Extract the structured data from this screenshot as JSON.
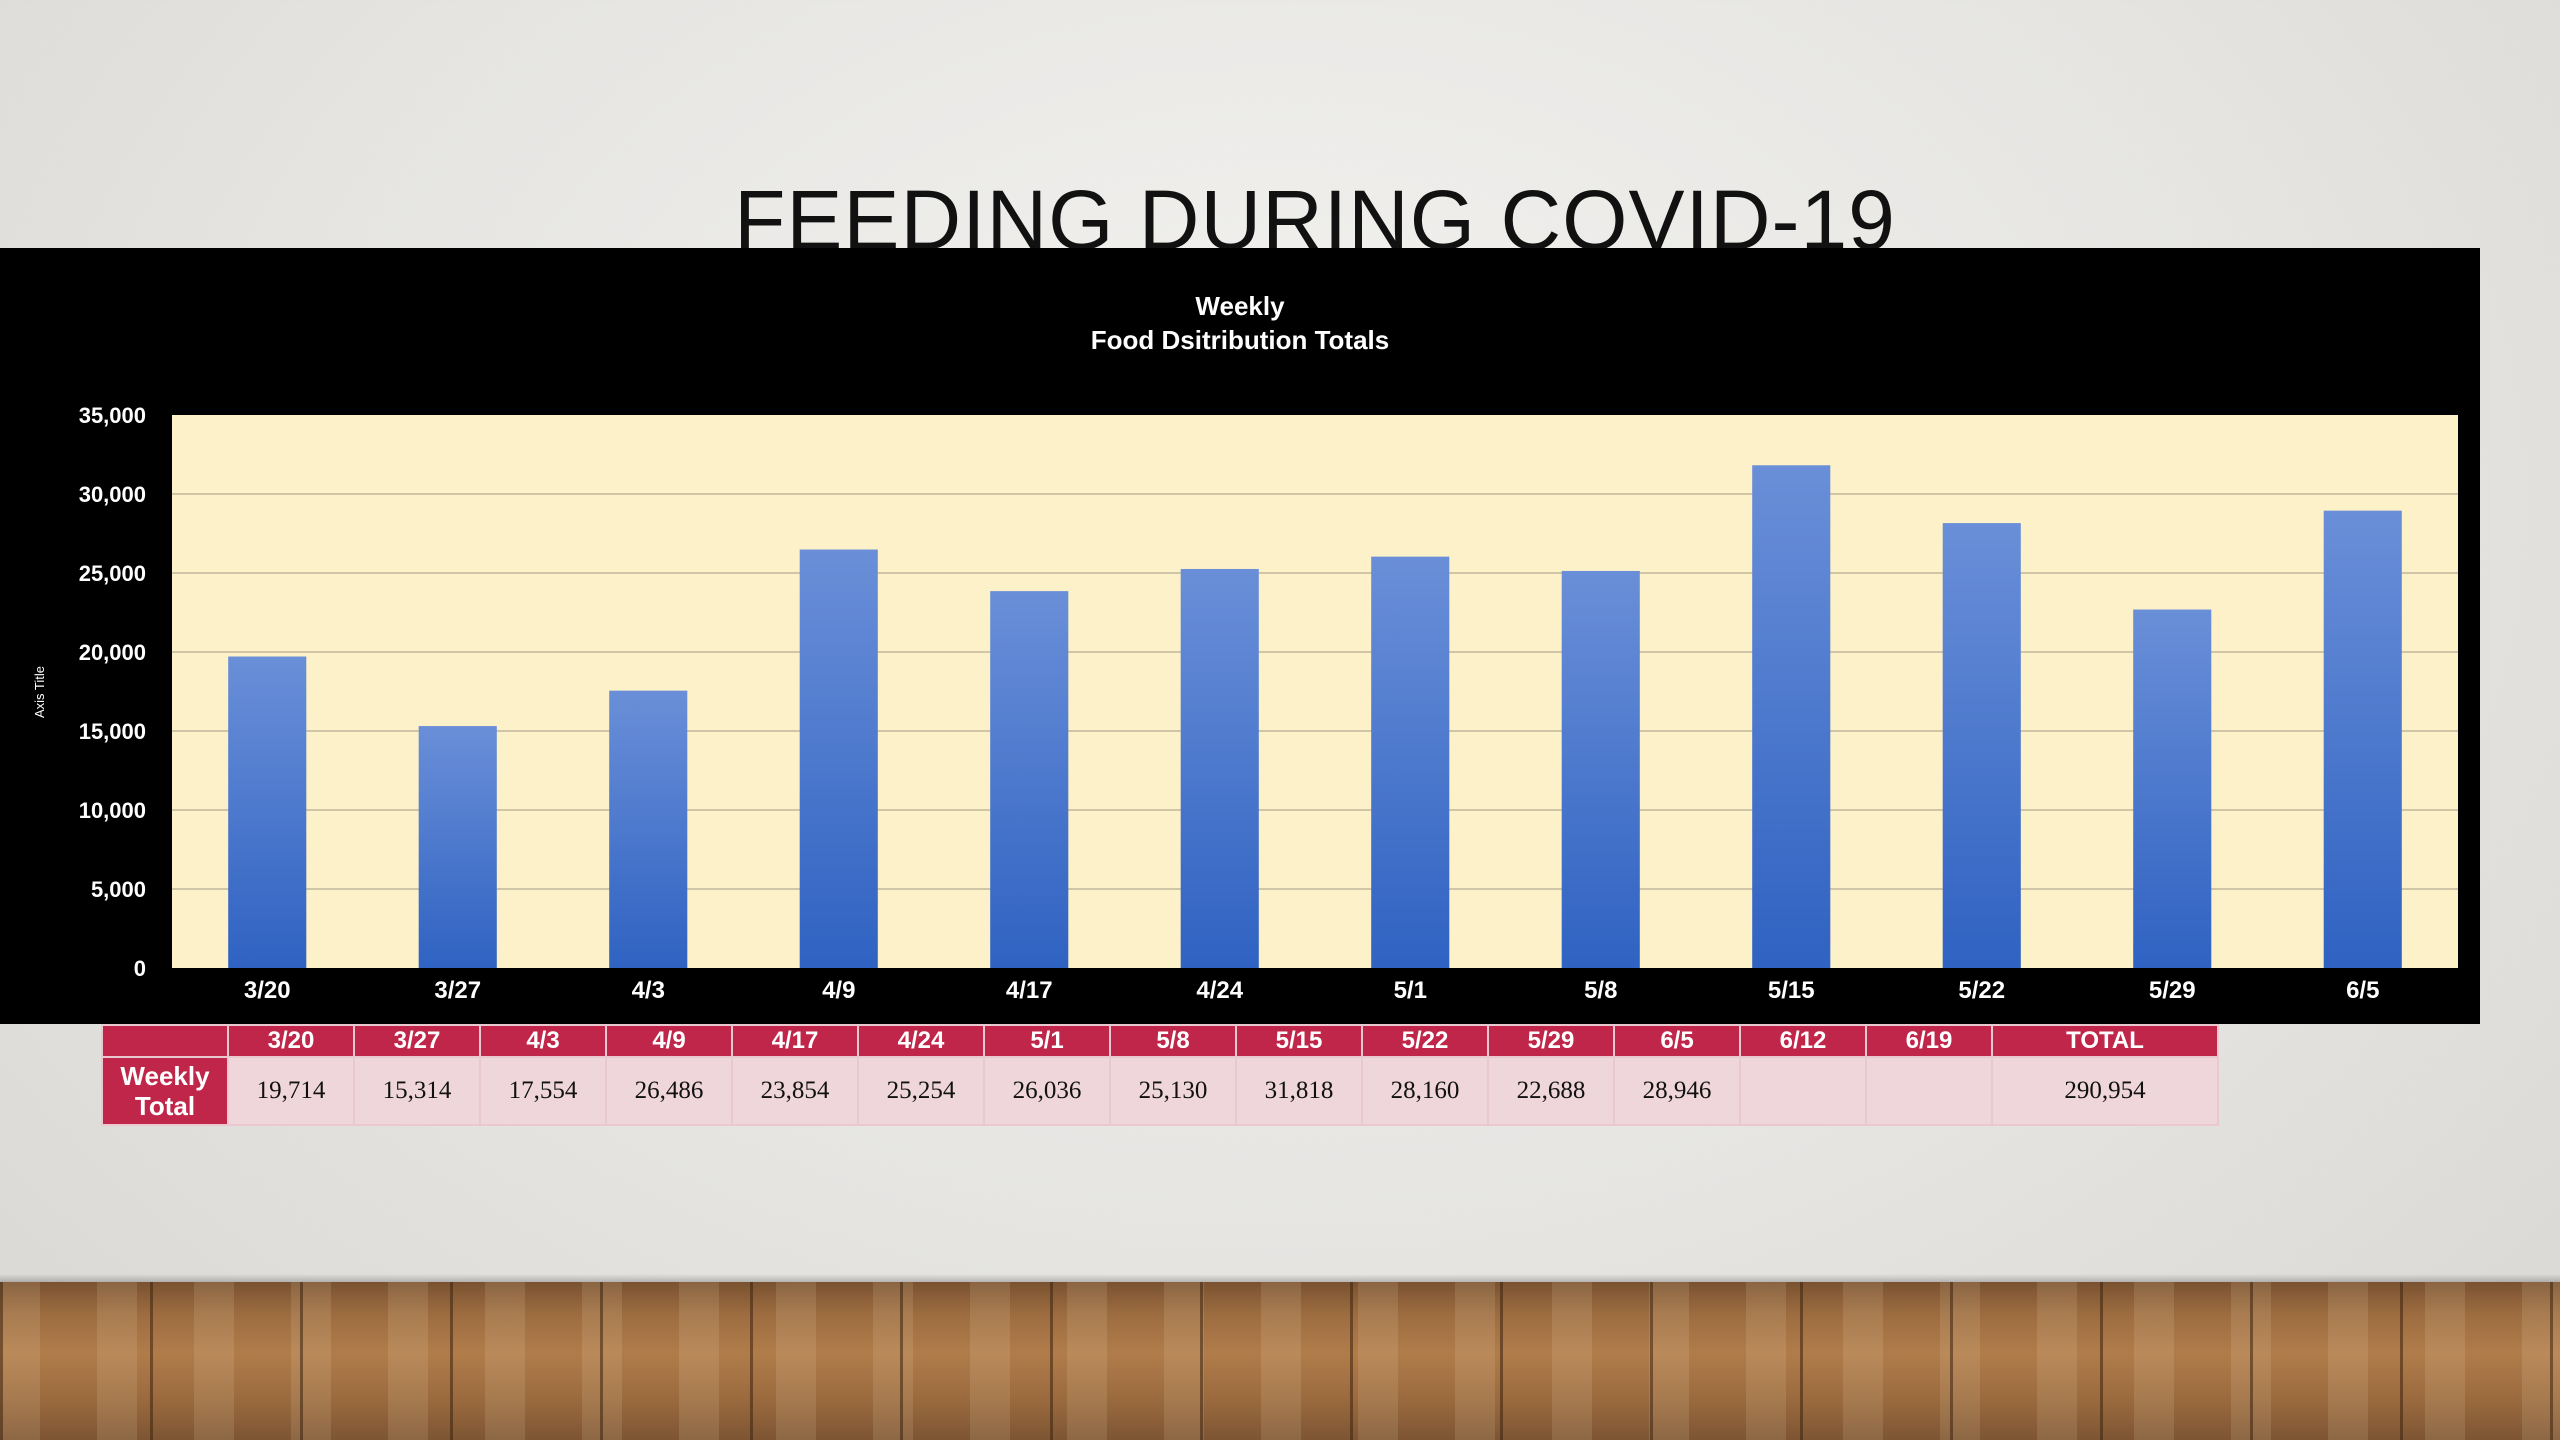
{
  "slide": {
    "title": "FEEDING DURING COVID-19"
  },
  "chart_data": {
    "type": "bar",
    "title": "Weekly",
    "subtitle": "Food Dsitribution Totals",
    "ylabel": "Axis Title",
    "xlabel": "",
    "categories": [
      "3/20",
      "3/27",
      "4/3",
      "4/9",
      "4/17",
      "4/24",
      "5/1",
      "5/8",
      "5/15",
      "5/22",
      "5/29",
      "6/5"
    ],
    "values": [
      19714,
      15314,
      17554,
      26486,
      23854,
      25254,
      26036,
      25130,
      31818,
      28160,
      22688,
      28946
    ],
    "ylim": [
      0,
      35000
    ],
    "yticks": [
      "0",
      "5,000",
      "10,000",
      "15,000",
      "20,000",
      "25,000",
      "30,000",
      "35,000"
    ],
    "grid": true,
    "colors": {
      "bar_top": "#6a8fd8",
      "bar_bottom": "#2f62c2",
      "plot_bg": "#fdf1c9",
      "panel_bg": "#000000",
      "grid": "#cfc6a8"
    }
  },
  "table": {
    "headers": [
      "",
      "3/20",
      "3/27",
      "4/3",
      "4/9",
      "4/17",
      "4/24",
      "5/1",
      "5/8",
      "5/15",
      "5/22",
      "5/29",
      "6/5",
      "6/12",
      "6/19",
      "TOTAL"
    ],
    "row_label_line1": "Weekly",
    "row_label_line2": "Total",
    "values": [
      "19,714",
      "15,314",
      "17,554",
      "26,486",
      "23,854",
      "25,254",
      "26,036",
      "25,130",
      "31,818",
      "28,160",
      "22,688",
      "28,946",
      "",
      "",
      "290,954"
    ],
    "colors": {
      "header_bg": "#c0264a",
      "cell_bg": "#efd6da"
    }
  }
}
